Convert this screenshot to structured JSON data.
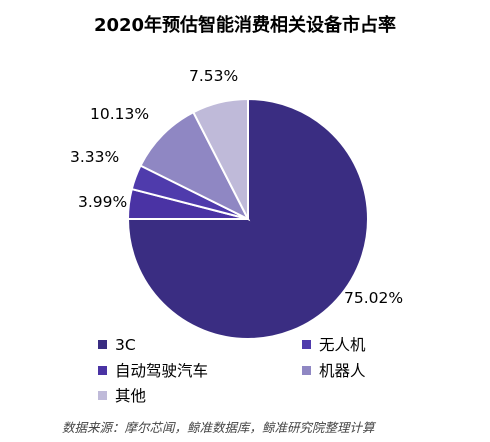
{
  "chart_data": {
    "type": "pie",
    "title": "2020年预估智能消费相关设备市占率",
    "slices": [
      {
        "label": "3C",
        "value": 75.02,
        "value_label": "75.02%",
        "color": "#3a2d82"
      },
      {
        "label": "自动驾驶汽车",
        "value": 3.99,
        "value_label": "3.99%",
        "color": "#4a33a4"
      },
      {
        "label": "无人机",
        "value": 3.33,
        "value_label": "3.33%",
        "color": "#4f3bac"
      },
      {
        "label": "机器人",
        "value": 10.13,
        "value_label": "10.13%",
        "color": "#8f87c3"
      },
      {
        "label": "其他",
        "value": 7.53,
        "value_label": "7.53%",
        "color": "#bfbad9"
      }
    ],
    "legend_order": [
      0,
      2,
      1,
      3,
      4
    ],
    "legend_position": "bottom",
    "source": "数据来源：摩尔芯闻，鲸准数据库，鲸准研究院整理计算"
  }
}
